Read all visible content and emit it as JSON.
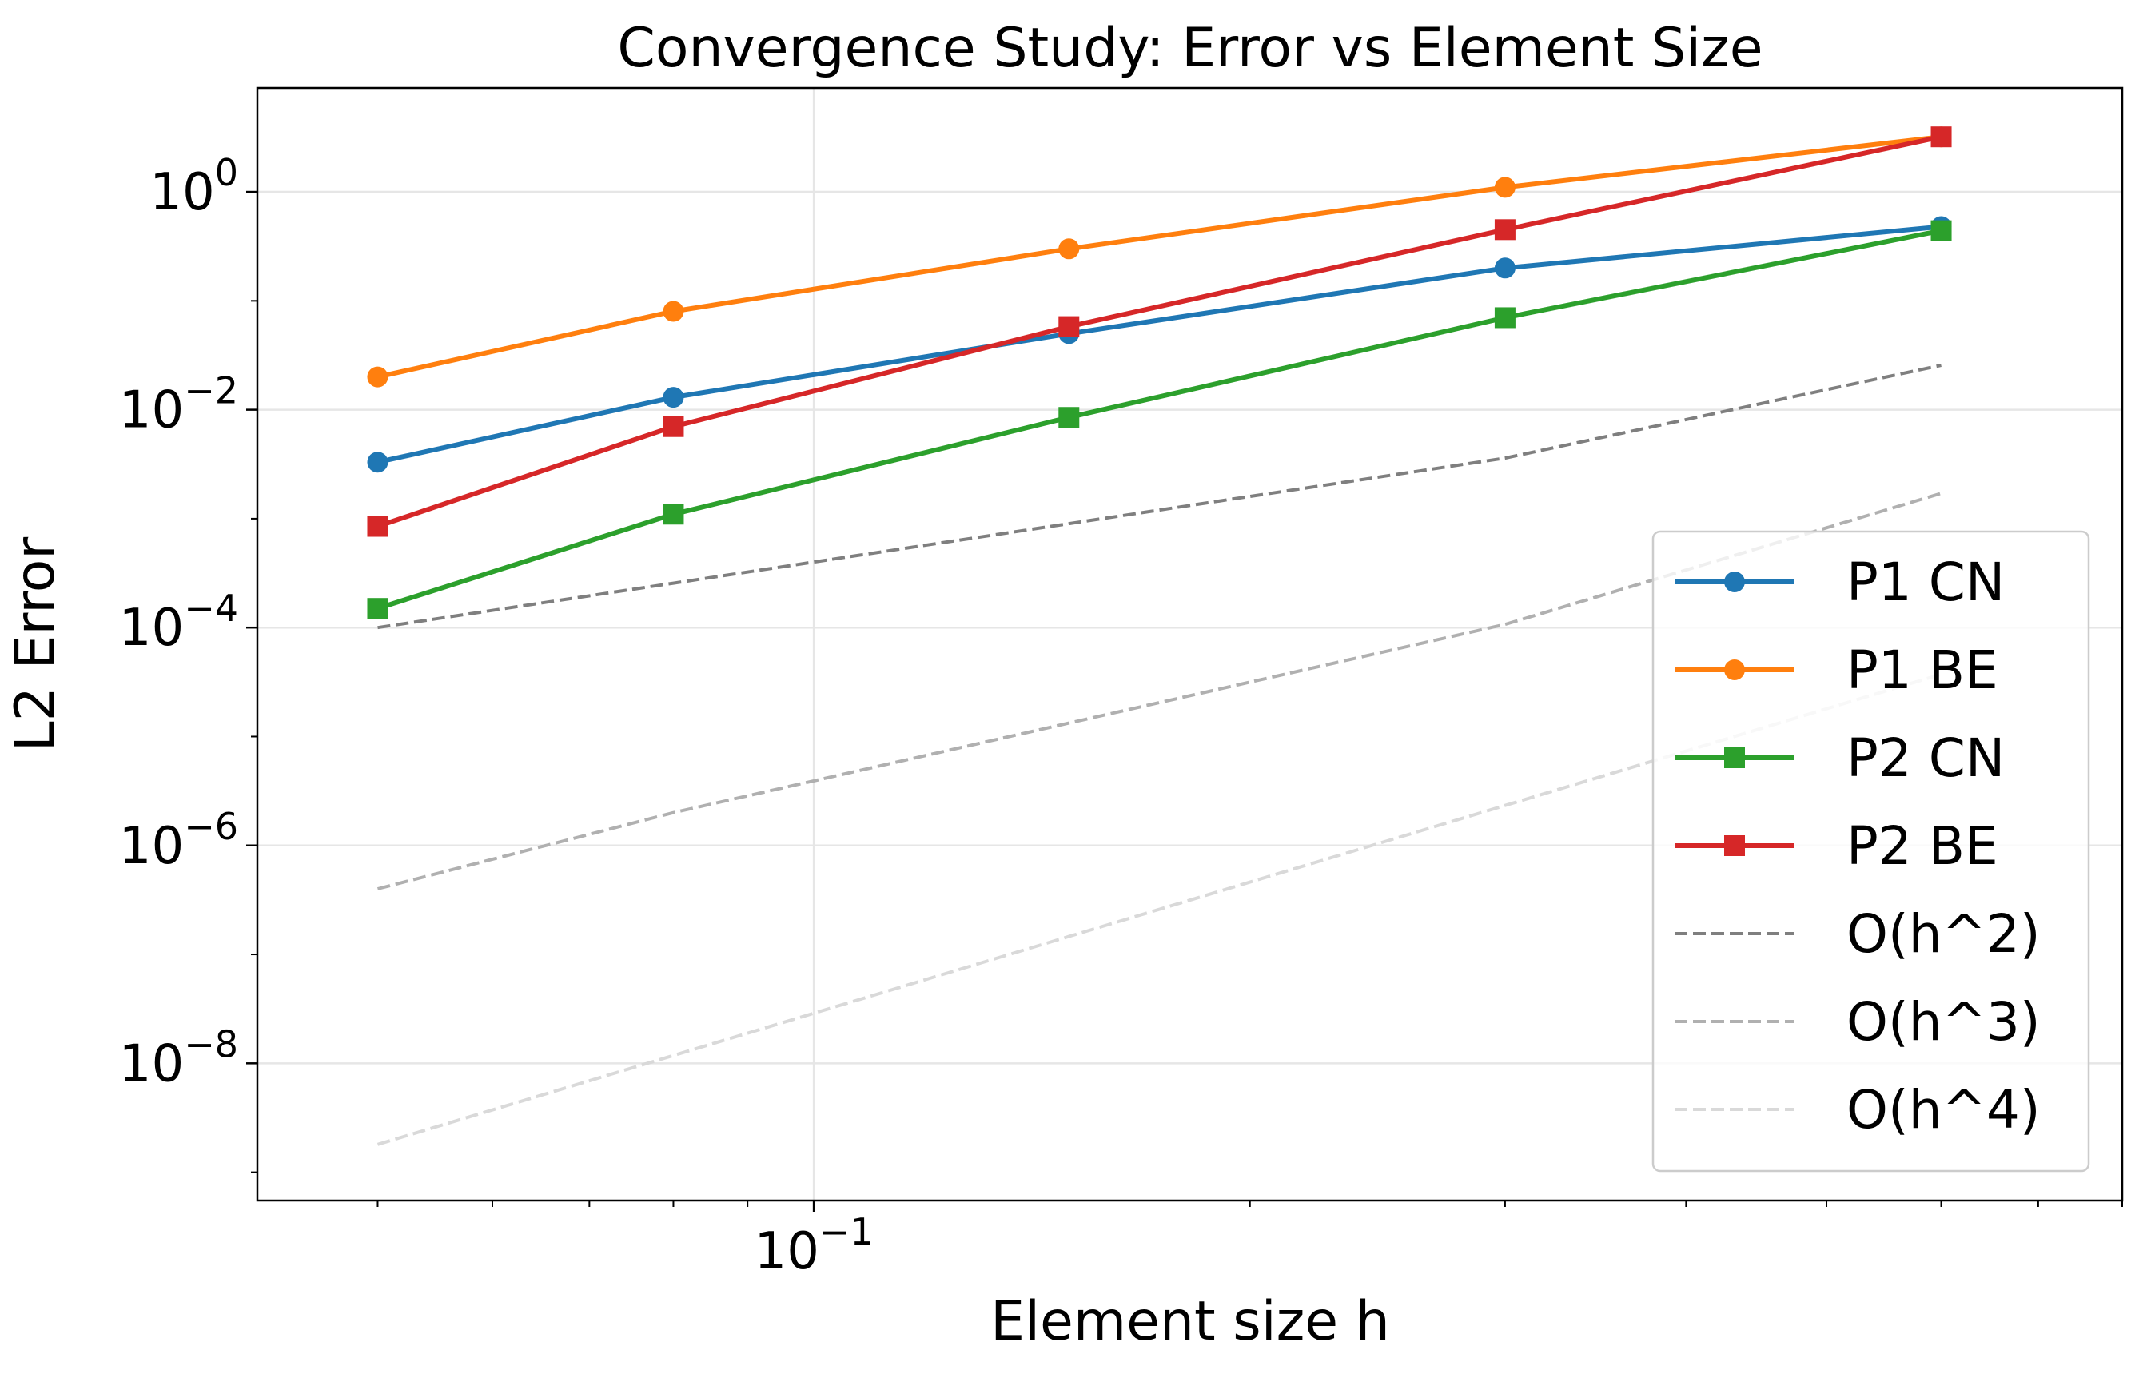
{
  "chart_data": {
    "type": "line",
    "title": "Convergence Study: Error vs Element Size",
    "xlabel": "Element size h",
    "ylabel": "L2 Error",
    "xscale": "log",
    "yscale": "log",
    "xlim": [
      0.0413,
      0.8
    ],
    "ylim": [
      5.5e-10,
      9.0
    ],
    "x_ticks": [
      {
        "value": 0.1,
        "base": "10",
        "exp": "−1"
      }
    ],
    "y_ticks": [
      {
        "value": 1,
        "base": "10",
        "exp": "0"
      },
      {
        "value": 0.01,
        "base": "10",
        "exp": "−2"
      },
      {
        "value": 0.0001,
        "base": "10",
        "exp": "−4"
      },
      {
        "value": 1e-06,
        "base": "10",
        "exp": "−6"
      },
      {
        "value": 1e-08,
        "base": "10",
        "exp": "−8"
      }
    ],
    "grid": true,
    "legend_position": "lower right",
    "x": [
      0.05,
      0.08,
      0.15,
      0.3,
      0.6
    ],
    "series": [
      {
        "name": "P1 CN",
        "color": "#1f77b4",
        "marker": "circle",
        "style": "solid",
        "values": [
          0.0033,
          0.013,
          0.05,
          0.2,
          0.48
        ]
      },
      {
        "name": "P1 BE",
        "color": "#ff7f0e",
        "marker": "circle",
        "style": "solid",
        "values": [
          0.02,
          0.08,
          0.3,
          1.1,
          3.2
        ]
      },
      {
        "name": "P2 CN",
        "color": "#2ca02c",
        "marker": "square",
        "style": "solid",
        "values": [
          0.00015,
          0.0011,
          0.0085,
          0.07,
          0.44
        ]
      },
      {
        "name": "P2 BE",
        "color": "#d62728",
        "marker": "square",
        "style": "solid",
        "values": [
          0.00085,
          0.007,
          0.058,
          0.45,
          3.2
        ]
      },
      {
        "name": "O(h^2)",
        "color": "#7f7f7f",
        "marker": "none",
        "style": "dashed",
        "values": [
          0.0001,
          0.000256,
          0.0009,
          0.0036,
          0.0256
        ]
      },
      {
        "name": "O(h^3)",
        "color": "#b0b0b0",
        "marker": "none",
        "style": "dashed",
        "values": [
          4e-07,
          2e-06,
          1.33e-05,
          0.000107,
          0.00171
        ]
      },
      {
        "name": "O(h^4)",
        "color": "#d9d9d9",
        "marker": "none",
        "style": "dashed",
        "values": [
          1.8e-09,
          1.18e-08,
          1.46e-07,
          2.33e-06,
          3.73e-05
        ]
      }
    ]
  }
}
